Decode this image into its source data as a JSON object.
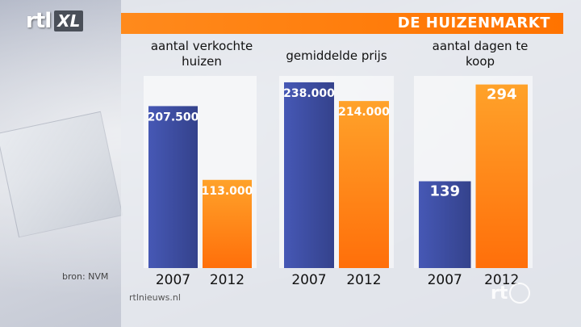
{
  "logo": {
    "rtl": "rtl",
    "xl": "XL"
  },
  "header": {
    "title": "DE HUIZENMARKT"
  },
  "source": "bron: NVM",
  "website": "rtlnieuws.nl",
  "bottom_logo": "rt",
  "colors": {
    "bar_2007": "#3d4da0",
    "bar_2012": "#ff8a14",
    "title_bar": "#ff7a00",
    "panel_bg": "#e4e6ec"
  },
  "chart_data": [
    {
      "type": "bar",
      "title": "aantal verkochte huizen",
      "categories": [
        "2007",
        "2012"
      ],
      "values": [
        207500,
        113000
      ],
      "value_labels": [
        "207.500",
        "113.000"
      ],
      "ylim": [
        0,
        240000
      ]
    },
    {
      "type": "bar",
      "title": "gemiddelde prijs",
      "categories": [
        "2007",
        "2012"
      ],
      "values": [
        238000,
        214000
      ],
      "value_labels": [
        "238.000",
        "214.000"
      ],
      "ylim": [
        0,
        240000
      ]
    },
    {
      "type": "bar",
      "title": "aantal dagen te koop",
      "categories": [
        "2007",
        "2012"
      ],
      "values": [
        139,
        294
      ],
      "value_labels": [
        "139",
        "294"
      ],
      "ylim": [
        0,
        300
      ]
    }
  ]
}
